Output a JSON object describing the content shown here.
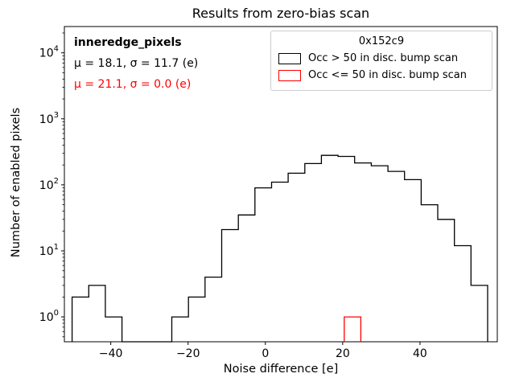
{
  "title": "Results from zero-bias scan",
  "xlabel": "Noise difference [e]",
  "ylabel": "Number of enabled pixels",
  "annotations": {
    "dataset": "inneredge_pixels",
    "stats_black": "μ = 18.1, σ = 11.7 (e)",
    "stats_red": "μ = 21.1, σ = 0.0 (e)"
  },
  "legend": {
    "title": "0x152c9",
    "entries": [
      {
        "label": "Occ > 50 in disc. bump scan",
        "color": "#000000"
      },
      {
        "label": "Occ <= 50 in disc. bump scan",
        "color": "#ff0000"
      }
    ]
  },
  "colors": {
    "series_black": "#000000",
    "series_red": "#ff0000",
    "legend_border": "#cccccc"
  },
  "chart_data": {
    "type": "bar",
    "subtype": "step-histogram",
    "title": "Results from zero-bias scan",
    "xlabel": "Noise difference [e]",
    "ylabel": "Number of enabled pixels",
    "y_scale": "log",
    "xlim": [
      -52,
      60
    ],
    "ylim": [
      0.42,
      25000
    ],
    "grid": false,
    "legend_position": "upper right",
    "x_ticks": [
      {
        "v": -40,
        "label": "−40"
      },
      {
        "v": -20,
        "label": "−20"
      },
      {
        "v": 0,
        "label": "0"
      },
      {
        "v": 20,
        "label": "20"
      },
      {
        "v": 40,
        "label": "40"
      }
    ],
    "y_ticks": [
      {
        "v": 1,
        "exp": "0"
      },
      {
        "v": 10,
        "exp": "1"
      },
      {
        "v": 100,
        "exp": "2"
      },
      {
        "v": 1000,
        "exp": "3"
      },
      {
        "v": 10000,
        "exp": "4"
      }
    ],
    "series": [
      {
        "name": "Occ > 50 in disc. bump scan",
        "color": "#000000",
        "bin_edges": [
          -50,
          -45.7,
          -41.4,
          -37.1,
          -32.8,
          -28.5,
          -24.2,
          -19.9,
          -15.6,
          -11.3,
          -7,
          -2.7,
          1.6,
          5.9,
          10.2,
          14.5,
          18.8,
          23.1,
          27.4,
          31.7,
          36,
          40.3,
          44.6,
          48.9,
          53.2,
          57.5
        ],
        "counts": [
          2,
          3,
          1,
          0,
          0,
          0,
          1,
          2,
          4,
          21,
          35,
          90,
          110,
          150,
          210,
          280,
          270,
          215,
          195,
          160,
          120,
          50,
          30,
          12,
          3
        ]
      },
      {
        "name": "Occ <= 50 in disc. bump scan",
        "color": "#ff0000",
        "bin_edges": [
          20.4,
          24.7
        ],
        "counts": [
          1
        ]
      }
    ]
  }
}
